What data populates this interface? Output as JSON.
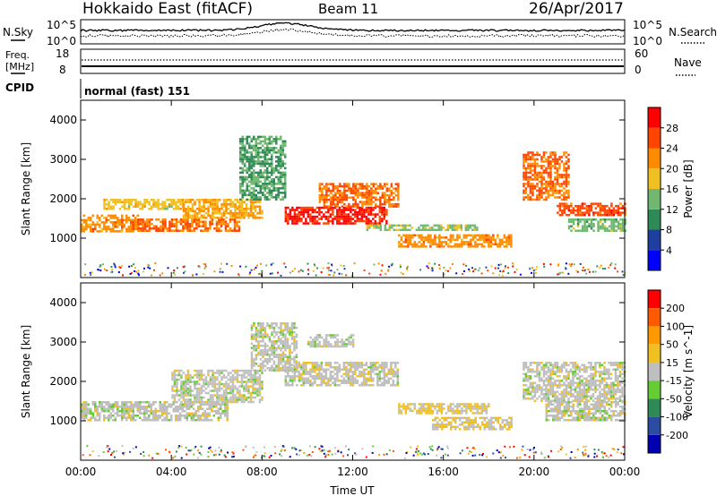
{
  "header": {
    "site": "Hokkaido East (fitACF)",
    "beam": "Beam 11",
    "date": "26/Apr/2017"
  },
  "panels": {
    "nsky_label": "N.Sky",
    "nsky_ticks": [
      "10^5",
      "10^0"
    ],
    "nsearch_label": "N.Search",
    "nsearch_ticks": [
      "10^5",
      "10^0"
    ],
    "freq_label": [
      "Freq.",
      "[MHz]"
    ],
    "freq_ticks": [
      "18",
      "8"
    ],
    "nave_label": "Nave",
    "nave_ticks": [
      "60",
      "0"
    ],
    "cpid_label": "CPID",
    "cpid_text": "normal (fast) 151"
  },
  "x_axis": {
    "ticks": [
      "00:00",
      "04:00",
      "08:00",
      "12:00",
      "16:00",
      "20:00",
      "00:00"
    ],
    "label": "Time UT"
  },
  "colors": {
    "power_scale": [
      "#0000ff",
      "#1f3fa0",
      "#2e8b57",
      "#70b870",
      "#f0c020",
      "#ff8c00",
      "#ff4500",
      "#ff0000"
    ],
    "velocity_scale": [
      "#0000b0",
      "#2b4ca0",
      "#2e8b57",
      "#66cc33",
      "#bfbfbf",
      "#f0c020",
      "#ff9900",
      "#ff5a00",
      "#ff0000"
    ]
  },
  "chart_data": [
    {
      "type": "heatmap",
      "ylabel": "Slant Range [km]",
      "ylim": [
        0,
        4500
      ],
      "yticks": [
        1000,
        2000,
        3000,
        4000
      ],
      "xlim": [
        0,
        24
      ],
      "colorbar": {
        "label": "Power [dB]",
        "ticks": [
          "28",
          "24",
          "20",
          "16",
          "12",
          "8",
          "4"
        ],
        "range": [
          0,
          32
        ]
      },
      "regions": [
        {
          "t": [
            0.0,
            2.5
          ],
          "r": [
            1150,
            1600
          ],
          "v": 22
        },
        {
          "t": [
            1.0,
            4.5
          ],
          "r": [
            1750,
            2000
          ],
          "v": 18
        },
        {
          "t": [
            2.5,
            7.0
          ],
          "r": [
            1200,
            1500
          ],
          "v": 24
        },
        {
          "t": [
            4.5,
            8.0
          ],
          "r": [
            1500,
            2000
          ],
          "v": 20
        },
        {
          "t": [
            7.0,
            9.0
          ],
          "r": [
            2000,
            3600
          ],
          "v": 12
        },
        {
          "t": [
            9.0,
            13.5
          ],
          "r": [
            1350,
            1800
          ],
          "v": 29
        },
        {
          "t": [
            10.5,
            14.0
          ],
          "r": [
            1800,
            2400
          ],
          "v": 24
        },
        {
          "t": [
            12.5,
            17.5
          ],
          "r": [
            1200,
            1350
          ],
          "v": 15
        },
        {
          "t": [
            14.0,
            19.0
          ],
          "r": [
            800,
            1100
          ],
          "v": 22
        },
        {
          "t": [
            19.5,
            21.5
          ],
          "r": [
            2000,
            3200
          ],
          "v": 24
        },
        {
          "t": [
            21.0,
            24.0
          ],
          "r": [
            1600,
            1900
          ],
          "v": 26
        },
        {
          "t": [
            21.5,
            24.0
          ],
          "r": [
            1200,
            1500
          ],
          "v": 14
        }
      ]
    },
    {
      "type": "heatmap",
      "ylabel": "Slant Range [km]",
      "ylim": [
        0,
        4500
      ],
      "yticks": [
        1000,
        2000,
        3000,
        4000
      ],
      "xlim": [
        0,
        24
      ],
      "colorbar": {
        "label": "Velocity [m s^-1]",
        "ticks": [
          "200",
          "100",
          "50",
          "15",
          "-15",
          "-50",
          "-100",
          "-200"
        ],
        "range": [
          -250,
          250
        ]
      },
      "regions": [
        {
          "t": [
            0.0,
            6.5
          ],
          "r": [
            1000,
            1500
          ],
          "v": 0
        },
        {
          "t": [
            4.0,
            8.0
          ],
          "r": [
            1500,
            2300
          ],
          "v": 0
        },
        {
          "t": [
            7.5,
            9.5
          ],
          "r": [
            2300,
            3500
          ],
          "v": 0
        },
        {
          "t": [
            9.0,
            14.0
          ],
          "r": [
            1900,
            2500
          ],
          "v": 5
        },
        {
          "t": [
            10.0,
            12.0
          ],
          "r": [
            2900,
            3200
          ],
          "v": 0
        },
        {
          "t": [
            14.0,
            18.0
          ],
          "r": [
            1200,
            1450
          ],
          "v": 40
        },
        {
          "t": [
            15.5,
            19.0
          ],
          "r": [
            800,
            1100
          ],
          "v": 30
        },
        {
          "t": [
            19.5,
            24.0
          ],
          "r": [
            1500,
            2500
          ],
          "v": 0
        },
        {
          "t": [
            20.5,
            24.0
          ],
          "r": [
            1000,
            1500
          ],
          "v": 0
        }
      ]
    }
  ]
}
